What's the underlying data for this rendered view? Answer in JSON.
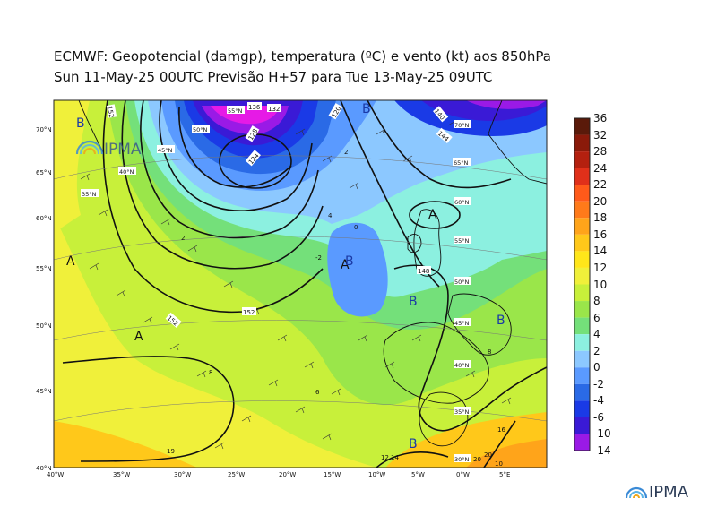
{
  "header": {
    "title_line1": "ECMWF:  Geopotencial (damgp), temperatura (ºC) e vento (kt) aos 850hPa",
    "title_line2": "Sun 11-May-25 00UTC Previsão H+57 para Tue 13-May-25 09UTC"
  },
  "logo_text": "IPMA",
  "colorbar": {
    "labels": [
      "36",
      "32",
      "28",
      "24",
      "22",
      "20",
      "18",
      "16",
      "14",
      "12",
      "10",
      "8",
      "6",
      "4",
      "2",
      "0",
      "-2",
      "-4",
      "-6",
      "-10",
      "-14"
    ],
    "colors": [
      "#5a1a0a",
      "#8a1a0a",
      "#b4200f",
      "#e0301a",
      "#ff5a1a",
      "#ff7a1a",
      "#ffa41a",
      "#ffc81a",
      "#ffe61a",
      "#f0f03a",
      "#c8f03a",
      "#9ae64a",
      "#74e07a",
      "#8cf0e0",
      "#8cc8ff",
      "#5a9aff",
      "#2a6ae6",
      "#1a3ae6",
      "#3a1ad6",
      "#9a1ae6",
      "#e61ae6"
    ]
  },
  "lat_labels": [
    "70°N",
    "65°N",
    "60°N",
    "55°N",
    "50°N",
    "45°N",
    "40°N"
  ],
  "lon_labels": [
    "40°W",
    "35°W",
    "30°W",
    "25°W",
    "20°W",
    "15°W",
    "10°W",
    "5°W",
    "0°W",
    "5°E"
  ],
  "map_lat_markers": [
    "35°N",
    "40°N",
    "45°N",
    "50°N",
    "55°N",
    "60°N",
    "65°N",
    "70°N",
    "55°N",
    "50°N",
    "45°N",
    "40°N",
    "35°N",
    "30°N"
  ],
  "pressure_centres": [
    "A",
    "A",
    "A",
    "A",
    "B",
    "B",
    "B",
    "B",
    "B",
    "B"
  ],
  "contour_values": [
    "152",
    "152",
    "148",
    "144",
    "140",
    "136",
    "132",
    "128",
    "124",
    "120",
    "152",
    "8",
    "6",
    "2",
    "-2",
    "4",
    "0",
    "2",
    "16",
    "20",
    "12",
    "14",
    "19",
    "10",
    "20",
    "8"
  ]
}
